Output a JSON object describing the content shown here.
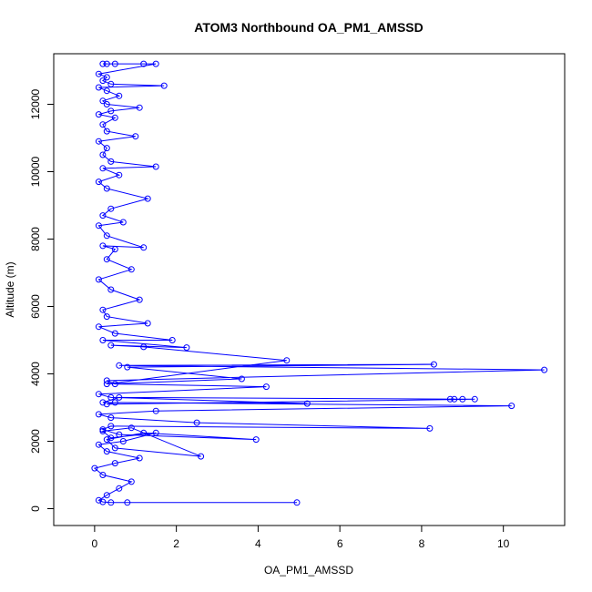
{
  "chart_data": {
    "type": "line",
    "title": "ATOM3 Northbound OA_PM1_AMSSD",
    "xlabel": "OA_PM1_AMSSD",
    "ylabel": "Altitude (m)",
    "xlim": [
      -1,
      11.5
    ],
    "ylim": [
      -500,
      13500
    ],
    "xticks": [
      0,
      2,
      4,
      6,
      8,
      10
    ],
    "yticks": [
      0,
      2000,
      4000,
      6000,
      8000,
      10000,
      12000
    ],
    "xtick_labels": [
      "0",
      "2",
      "4",
      "6",
      "8",
      "10"
    ],
    "ytick_labels": [
      "0",
      "2000",
      "4000",
      "6000",
      "8000",
      "10000",
      "12000"
    ],
    "grid": false,
    "color": "#0000ff",
    "marker": "open-circle",
    "series": [
      {
        "x": [
          4.95,
          0.8,
          0.4,
          0.2,
          0.1,
          0.3,
          0.6,
          0.9,
          0.2,
          0.0,
          0.5,
          1.1,
          0.3,
          0.1,
          0.7,
          1.5,
          0.4,
          0.2,
          0.9,
          2.6,
          0.5,
          0.3,
          1.2,
          3.95,
          0.6,
          0.2,
          0.4,
          8.2,
          2.5,
          0.4,
          0.1,
          1.5,
          10.2,
          0.5,
          0.3,
          9.3,
          8.7,
          8.8,
          9.0,
          0.6,
          0.2,
          5.2,
          0.4,
          0.1,
          4.2,
          0.5,
          0.3,
          11.0,
          0.6,
          8.3,
          0.8,
          3.6,
          0.3,
          4.7,
          1.2,
          0.4,
          2.25,
          0.2,
          1.9,
          0.5,
          0.1,
          1.3,
          0.3,
          0.2,
          1.1,
          0.4,
          0.1,
          0.9,
          0.3,
          0.5,
          0.2,
          1.2,
          0.3,
          0.1,
          0.7,
          0.2,
          0.4,
          1.3,
          0.3,
          0.1,
          0.6,
          0.2,
          1.5,
          0.4,
          0.2,
          0.3,
          0.1,
          1.0,
          0.3,
          0.2,
          0.5,
          0.1,
          0.4,
          1.1,
          0.3,
          0.2,
          0.6,
          0.3,
          0.1,
          1.7,
          0.4,
          0.2,
          0.3,
          0.1,
          1.5,
          0.5,
          0.3,
          1.2,
          0.2
        ],
        "y": [
          180,
          180,
          180,
          200,
          250,
          400,
          600,
          800,
          1000,
          1200,
          1350,
          1500,
          1700,
          1900,
          2000,
          2250,
          2100,
          2300,
          2400,
          1550,
          1800,
          2050,
          2250,
          2050,
          2200,
          2350,
          2450,
          2380,
          2550,
          2700,
          2800,
          2900,
          3050,
          3150,
          3100,
          3250,
          3250,
          3250,
          3250,
          3300,
          3150,
          3120,
          3300,
          3400,
          3620,
          3700,
          3800,
          4120,
          4250,
          4280,
          4200,
          3850,
          3700,
          4400,
          4800,
          4850,
          4780,
          5000,
          5000,
          5200,
          5400,
          5500,
          5700,
          5900,
          6200,
          6500,
          6800,
          7100,
          7400,
          7700,
          7800,
          7750,
          8100,
          8400,
          8500,
          8700,
          8900,
          9200,
          9500,
          9700,
          9900,
          10100,
          10150,
          10300,
          10500,
          10700,
          10900,
          11050,
          11200,
          11400,
          11600,
          11700,
          11800,
          11900,
          12000,
          12100,
          12250,
          12400,
          12500,
          12550,
          12600,
          12700,
          12800,
          12900,
          13200,
          13200,
          13200,
          13200,
          13200
        ]
      }
    ]
  }
}
